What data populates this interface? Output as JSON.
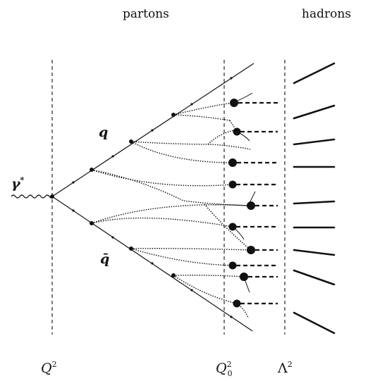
{
  "header": {
    "partons": "partons",
    "hadrons": "hadrons"
  },
  "particles": {
    "photon": "γ",
    "photon_star": "*",
    "quark": "q",
    "antiquark": "q̄"
  },
  "scales": {
    "Q": "Q",
    "Q_sup": "2",
    "Q0": "Q",
    "Q0_sup": "2",
    "Q0_sub": "0",
    "Lambda": "Λ",
    "Lambda_sup": "2"
  }
}
